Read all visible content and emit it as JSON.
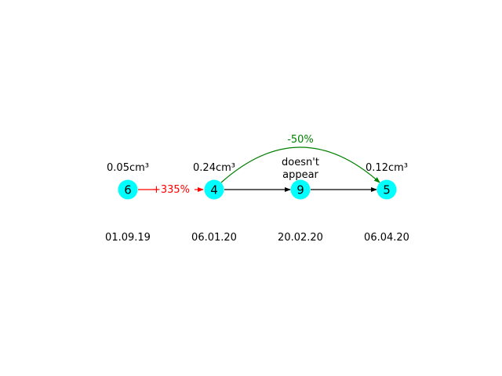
{
  "colors": {
    "node_fill": "#00ffff",
    "edge_default": "#000000",
    "edge_increase": "#ff0000",
    "edge_decrease": "#008000",
    "background": "#ffffff"
  },
  "nodes": [
    {
      "id": "n1",
      "label": "6",
      "volume": "0.05cm³",
      "date": "01.09.19"
    },
    {
      "id": "n2",
      "label": "4",
      "volume": "0.24cm³",
      "date": "06.01.20"
    },
    {
      "id": "n3",
      "label": "9",
      "volume_lines": [
        "doesn't",
        "appear"
      ],
      "date": "20.02.20"
    },
    {
      "id": "n4",
      "label": "5",
      "volume": "0.12cm³",
      "date": "06.04.20"
    }
  ],
  "edges": [
    {
      "from": "n1",
      "to": "n2",
      "label": "+335%",
      "kind": "increase"
    },
    {
      "from": "n2",
      "to": "n3",
      "label": "",
      "kind": "default"
    },
    {
      "from": "n3",
      "to": "n4",
      "label": "",
      "kind": "default"
    },
    {
      "from": "n2",
      "to": "n4",
      "label": "-50%",
      "kind": "decrease"
    }
  ]
}
